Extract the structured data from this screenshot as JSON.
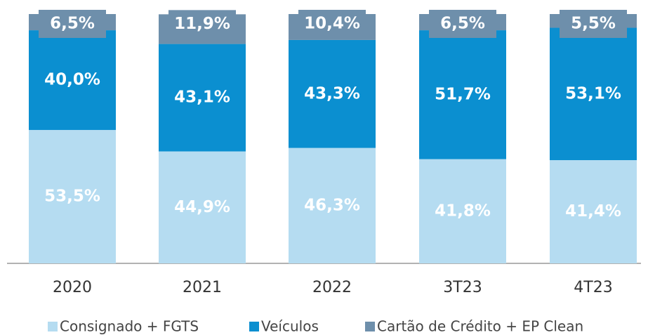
{
  "chart_data": {
    "type": "stacked_bar",
    "categories": [
      "2020",
      "2021",
      "2022",
      "3T23",
      "4T23"
    ],
    "ylim": [
      0,
      100
    ],
    "series": [
      {
        "name": "Consignado + FGTS",
        "color": "#b5dcf1",
        "values": [
          53.5,
          44.9,
          46.3,
          41.8,
          41.4
        ],
        "value_labels": [
          "53,5%",
          "44,9%",
          "46,3%",
          "41,8%",
          "41,4%"
        ]
      },
      {
        "name": "Veículos",
        "color": "#0b8fd0",
        "values": [
          40.0,
          43.1,
          43.3,
          51.7,
          53.1
        ],
        "value_labels": [
          "40,0%",
          "43,1%",
          "43,3%",
          "51,7%",
          "53,1%"
        ]
      },
      {
        "name": "Cartão de Crédito + EP Clean",
        "color": "#6e8fab",
        "values": [
          6.5,
          11.9,
          10.4,
          6.5,
          5.5
        ],
        "value_labels": [
          "6,5%",
          "11,9%",
          "10,4%",
          "6,5%",
          "5,5%"
        ]
      }
    ],
    "legend": "bottom"
  }
}
